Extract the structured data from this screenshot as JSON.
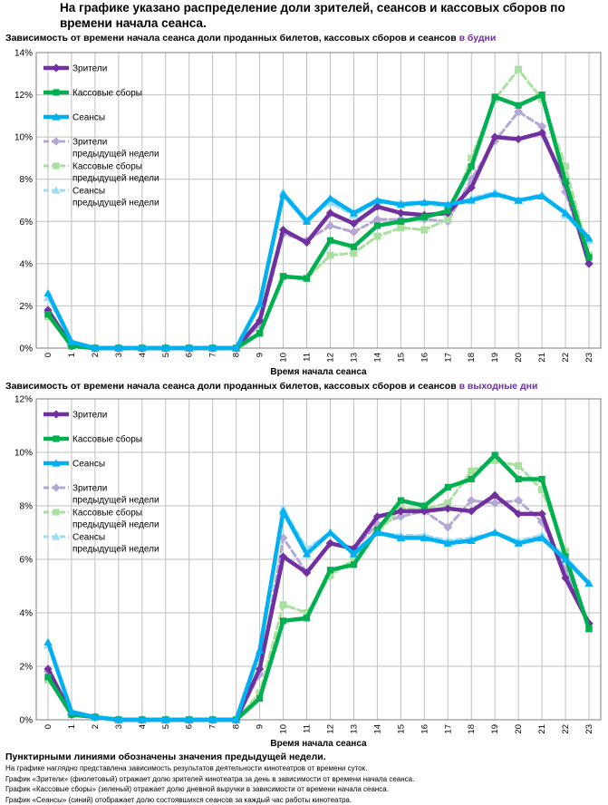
{
  "page": {
    "title": "На графике указано распределение доли зрителей, сеансов и кассовых сборов по времени начала сеанса."
  },
  "colors": {
    "viewers": "#7030a0",
    "box_office": "#00b050",
    "sessions": "#00b0f0",
    "viewers_prev": "#b4a7d6",
    "box_office_prev": "#a9e0a0",
    "sessions_prev": "#9ddcf5",
    "accent": "#7030a0"
  },
  "chart_data": [
    {
      "type": "line",
      "title_prefix": "Зависимость от времени начала сеанса доли проданных билетов, кассовых сборов и сеансов ",
      "title_accent": "в будни",
      "xlabel": "Время начала сеанса",
      "ylabel": "",
      "categories": [
        "0",
        "1",
        "2",
        "3",
        "4",
        "5",
        "6",
        "7",
        "8",
        "9",
        "10",
        "11",
        "12",
        "13",
        "14",
        "15",
        "16",
        "17",
        "18",
        "19",
        "20",
        "21",
        "22",
        "23"
      ],
      "ylim": [
        0,
        14
      ],
      "yticks": [
        "0%",
        "2%",
        "4%",
        "6%",
        "8%",
        "10%",
        "12%",
        "14%"
      ],
      "ytick_values": [
        0,
        2,
        4,
        6,
        8,
        10,
        12,
        14
      ],
      "legend_position": "top-left",
      "series": [
        {
          "name": "Зрители",
          "key": "viewers",
          "dashed": false,
          "marker": "diamond",
          "values": [
            1.8,
            0.1,
            0,
            0,
            0,
            0,
            0,
            0,
            0,
            1.3,
            5.6,
            5.0,
            6.4,
            5.9,
            6.7,
            6.4,
            6.3,
            6.4,
            7.6,
            10.0,
            9.9,
            10.2,
            7.8,
            4.0
          ]
        },
        {
          "name": "Кассовые сборы",
          "key": "box_office",
          "dashed": false,
          "marker": "square",
          "values": [
            1.6,
            0.1,
            0,
            0,
            0,
            0,
            0,
            0,
            0,
            0.7,
            3.4,
            3.3,
            5.1,
            4.8,
            5.8,
            6.0,
            6.2,
            6.5,
            8.6,
            11.9,
            11.5,
            12.0,
            7.9,
            4.3
          ]
        },
        {
          "name": "Сеансы",
          "key": "sessions",
          "dashed": false,
          "marker": "triangle",
          "values": [
            2.6,
            0.3,
            0,
            0,
            0,
            0,
            0,
            0,
            0,
            2.1,
            7.3,
            6.0,
            7.1,
            6.4,
            7.0,
            6.8,
            6.9,
            6.8,
            7.0,
            7.3,
            7.0,
            7.2,
            6.4,
            5.2
          ]
        },
        {
          "name": "Зрители предыдущей недели",
          "key": "viewers_prev",
          "dashed": true,
          "marker": "diamond",
          "values": [
            1.7,
            0.1,
            0,
            0,
            0,
            0,
            0,
            0,
            0,
            1.1,
            5.4,
            5.1,
            5.8,
            5.5,
            6.1,
            6.1,
            6.1,
            6.0,
            8.0,
            9.8,
            11.2,
            10.5,
            7.4,
            4.0
          ]
        },
        {
          "name": "Кассовые сборы предыдущей недели",
          "key": "box_office_prev",
          "dashed": true,
          "marker": "square",
          "values": [
            1.5,
            0.1,
            0,
            0,
            0,
            0,
            0,
            0,
            0,
            0.7,
            3.4,
            3.3,
            4.4,
            4.5,
            5.3,
            5.7,
            5.6,
            6.1,
            9.0,
            11.8,
            13.2,
            11.8,
            8.6,
            4.4
          ]
        },
        {
          "name": "Сеансы предыдущей недели",
          "key": "sessions_prev",
          "dashed": true,
          "marker": "triangle",
          "values": [
            2.4,
            0.3,
            0,
            0,
            0,
            0,
            0,
            0,
            0,
            2.1,
            7.4,
            6.1,
            6.9,
            6.3,
            6.9,
            6.9,
            6.9,
            6.7,
            7.1,
            7.4,
            7.0,
            7.3,
            6.3,
            5.1
          ]
        }
      ]
    },
    {
      "type": "line",
      "title_prefix": "Зависимость от времени начала сеанса доли проданных билетов, кассовых сборов и сеансов ",
      "title_accent": "в выходные дни",
      "xlabel": "Время начала сеанса",
      "ylabel": "",
      "categories": [
        "0",
        "1",
        "2",
        "3",
        "4",
        "5",
        "6",
        "7",
        "8",
        "9",
        "10",
        "11",
        "12",
        "13",
        "14",
        "15",
        "16",
        "17",
        "18",
        "19",
        "20",
        "21",
        "22",
        "23"
      ],
      "ylim": [
        0,
        12
      ],
      "yticks": [
        "0%",
        "2%",
        "4%",
        "6%",
        "8%",
        "10%",
        "12%"
      ],
      "ytick_values": [
        0,
        2,
        4,
        6,
        8,
        10,
        12
      ],
      "legend_position": "top-left",
      "series": [
        {
          "name": "Зрители",
          "key": "viewers",
          "dashed": false,
          "marker": "diamond",
          "values": [
            1.9,
            0.2,
            0.1,
            0,
            0,
            0,
            0,
            0,
            0,
            1.9,
            6.1,
            5.5,
            6.6,
            6.4,
            7.6,
            7.8,
            7.8,
            7.9,
            7.8,
            8.4,
            7.7,
            7.7,
            5.3,
            3.6
          ]
        },
        {
          "name": "Кассовые сборы",
          "key": "box_office",
          "dashed": false,
          "marker": "square",
          "values": [
            1.6,
            0.2,
            0.1,
            0,
            0,
            0,
            0,
            0,
            0,
            0.8,
            3.7,
            3.8,
            5.6,
            5.8,
            7.1,
            8.2,
            8.0,
            8.7,
            9.0,
            9.9,
            9.0,
            9.0,
            6.1,
            3.4
          ]
        },
        {
          "name": "Сеансы",
          "key": "sessions",
          "dashed": false,
          "marker": "triangle",
          "values": [
            2.9,
            0.3,
            0.1,
            0,
            0,
            0,
            0,
            0,
            0,
            2.6,
            7.8,
            6.2,
            7.0,
            6.2,
            7.0,
            6.8,
            6.8,
            6.6,
            6.7,
            7.0,
            6.6,
            6.8,
            6.0,
            5.1
          ]
        },
        {
          "name": "Зрители предыдущей недели",
          "key": "viewers_prev",
          "dashed": true,
          "marker": "diamond",
          "values": [
            1.8,
            0.2,
            0.1,
            0,
            0,
            0,
            0,
            0,
            0,
            1.7,
            6.8,
            5.5,
            6.6,
            6.4,
            7.3,
            7.6,
            7.8,
            7.2,
            8.2,
            8.1,
            8.2,
            7.4,
            5.6,
            3.6
          ]
        },
        {
          "name": "Кассовые сборы предыдущей недели",
          "key": "box_office_prev",
          "dashed": true,
          "marker": "square",
          "values": [
            1.5,
            0.2,
            0.1,
            0,
            0,
            0,
            0,
            0,
            0,
            1.0,
            4.3,
            4.0,
            5.4,
            6.0,
            7.0,
            7.9,
            7.9,
            8.1,
            9.3,
            9.7,
            9.5,
            8.6,
            6.3,
            3.4
          ]
        },
        {
          "name": "Сеансы предыдущей недели",
          "key": "sessions_prev",
          "dashed": true,
          "marker": "triangle",
          "values": [
            2.8,
            0.3,
            0.1,
            0,
            0,
            0,
            0,
            0,
            0,
            2.4,
            7.9,
            6.4,
            7.0,
            6.3,
            7.0,
            6.9,
            6.9,
            6.7,
            6.8,
            7.0,
            6.7,
            6.9,
            6.1,
            5.1
          ]
        }
      ]
    }
  ],
  "legend_labels": [
    "Зрители",
    "Кассовые сборы",
    "Сеансы",
    "Зрители",
    "предыдущей недели",
    "Кассовые сборы",
    "предыдущей недели",
    "Сеансы",
    "предыдущей недели"
  ],
  "notes": {
    "heading": "Пунктирными линиями обозначены значения предыдущей недели.",
    "lines": [
      "На графике наглядно представлена зависимость результатов деятельности кинотеатров от времени суток.",
      "График «Зрители» (фиолетовый) отражает долю зрителей кинотеатра за день в зависимости от времени начала сеанса.",
      "График «Кассовые сборы» (зеленый) отражает долю дневной выручки в зависимости от времени начала сеанса.",
      "График «Сеансы» (синий) отображает долю состоявшихся сеансов за каждый час работы кинотеатра."
    ]
  }
}
